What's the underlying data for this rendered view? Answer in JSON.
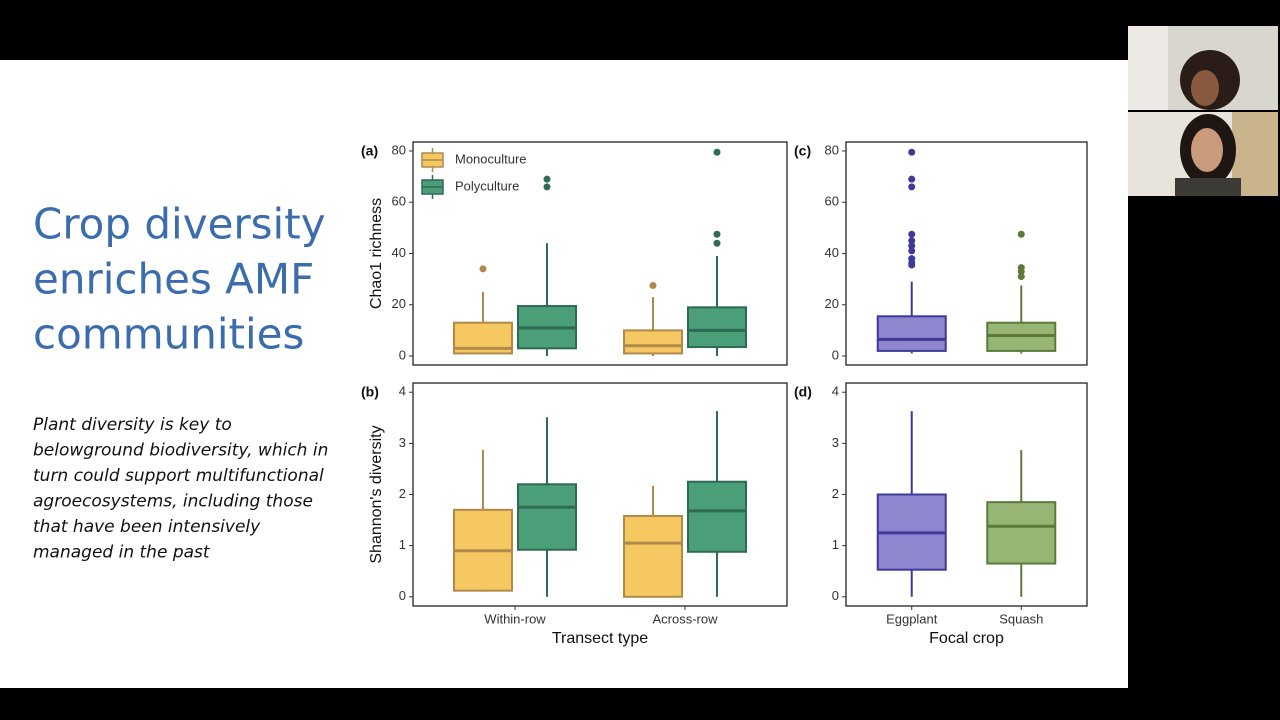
{
  "slide": {
    "title_lines": [
      "Crop diversity",
      "enriches AMF",
      "communities"
    ],
    "body_lines": [
      "Plant diversity is key to",
      "belowground biodiversity, which in",
      "turn could support multifunctional",
      "agroecosystems, including those",
      "that have been intensively",
      "managed in the past"
    ]
  },
  "chart_data": [
    {
      "type": "box",
      "panel_label": "(a)",
      "y_label": "Chao1 richness",
      "legend": "top-left",
      "ylim": [
        -3.5,
        83.5
      ],
      "yticks": [
        0,
        20,
        40,
        60,
        80
      ],
      "series": [
        {
          "name": "Monoculture",
          "color": "#f5c862",
          "edge": "#b08a4a",
          "boxes": [
            {
              "whisker_low": 1,
              "q1": 1,
              "median": 3,
              "q3": 13,
              "whisker_high": 25,
              "outliers": [
                34
              ]
            },
            {
              "whisker_low": 0,
              "q1": 1,
              "median": 4,
              "q3": 10,
              "whisker_high": 23,
              "outliers": [
                27.5
              ]
            }
          ]
        },
        {
          "name": "Polyculture",
          "color": "#4a9e78",
          "edge": "#2f6a55",
          "boxes": [
            {
              "whisker_low": 0,
              "q1": 3,
              "median": 11,
              "q3": 19.5,
              "whisker_high": 44,
              "outliers": [
                66,
                69
              ]
            },
            {
              "whisker_low": 0,
              "q1": 3.5,
              "median": 10,
              "q3": 19,
              "whisker_high": 39,
              "outliers": [
                44,
                47.5,
                79.5
              ]
            }
          ]
        }
      ]
    },
    {
      "type": "box",
      "panel_label": "(b)",
      "y_label": "Shannon's diversity",
      "x_label": "Transect type",
      "categories": [
        "Within-row",
        "Across-row"
      ],
      "ylim": [
        -0.18,
        4.18
      ],
      "yticks": [
        0,
        1,
        2,
        3,
        4
      ],
      "series": [
        {
          "color": "#f5c862",
          "edge": "#b08a4a",
          "boxes": [
            {
              "whisker_low": 0.1,
              "q1": 0.12,
              "median": 0.9,
              "q3": 1.7,
              "whisker_high": 2.87,
              "outliers": []
            },
            {
              "whisker_low": 0,
              "q1": 0,
              "median": 1.05,
              "q3": 1.58,
              "whisker_high": 2.17,
              "outliers": []
            }
          ]
        },
        {
          "color": "#4a9e78",
          "edge": "#2f6a55",
          "boxes": [
            {
              "whisker_low": 0,
              "q1": 0.92,
              "median": 1.75,
              "q3": 2.2,
              "whisker_high": 3.51,
              "outliers": []
            },
            {
              "whisker_low": 0,
              "q1": 0.88,
              "median": 1.68,
              "q3": 2.25,
              "whisker_high": 3.63,
              "outliers": []
            }
          ]
        }
      ]
    },
    {
      "type": "box",
      "panel_label": "(c)",
      "ylim": [
        -3.5,
        83.5
      ],
      "yticks": [
        0,
        20,
        40,
        60,
        80
      ],
      "series": [
        {
          "colors": [
            "#8f86d0",
            "#97b574"
          ],
          "edges": [
            "#3d3a9a",
            "#5b7a3a"
          ],
          "boxes": [
            {
              "whisker_low": 1,
              "q1": 2,
              "median": 6.5,
              "q3": 15.5,
              "whisker_high": 29,
              "outliers": [
                35.5,
                36.5,
                38,
                41,
                43,
                45,
                47.5,
                66,
                69,
                79.5
              ]
            },
            {
              "whisker_low": 1,
              "q1": 2,
              "median": 8,
              "q3": 13,
              "whisker_high": 27.5,
              "outliers": [
                31,
                33,
                34.5,
                47.5
              ]
            }
          ]
        }
      ]
    },
    {
      "type": "box",
      "panel_label": "(d)",
      "x_label": "Focal crop",
      "categories": [
        "Eggplant",
        "Squash"
      ],
      "ylim": [
        -0.18,
        4.18
      ],
      "yticks": [
        0,
        1,
        2,
        3,
        4
      ],
      "series": [
        {
          "colors": [
            "#8f86d0",
            "#97b574"
          ],
          "edges": [
            "#3d3a9a",
            "#5b7a3a"
          ],
          "boxes": [
            {
              "whisker_low": 0,
              "q1": 0.53,
              "median": 1.25,
              "q3": 2.0,
              "whisker_high": 3.63,
              "outliers": []
            },
            {
              "whisker_low": 0,
              "q1": 0.65,
              "median": 1.38,
              "q3": 1.85,
              "whisker_high": 2.87,
              "outliers": []
            }
          ]
        }
      ]
    }
  ]
}
